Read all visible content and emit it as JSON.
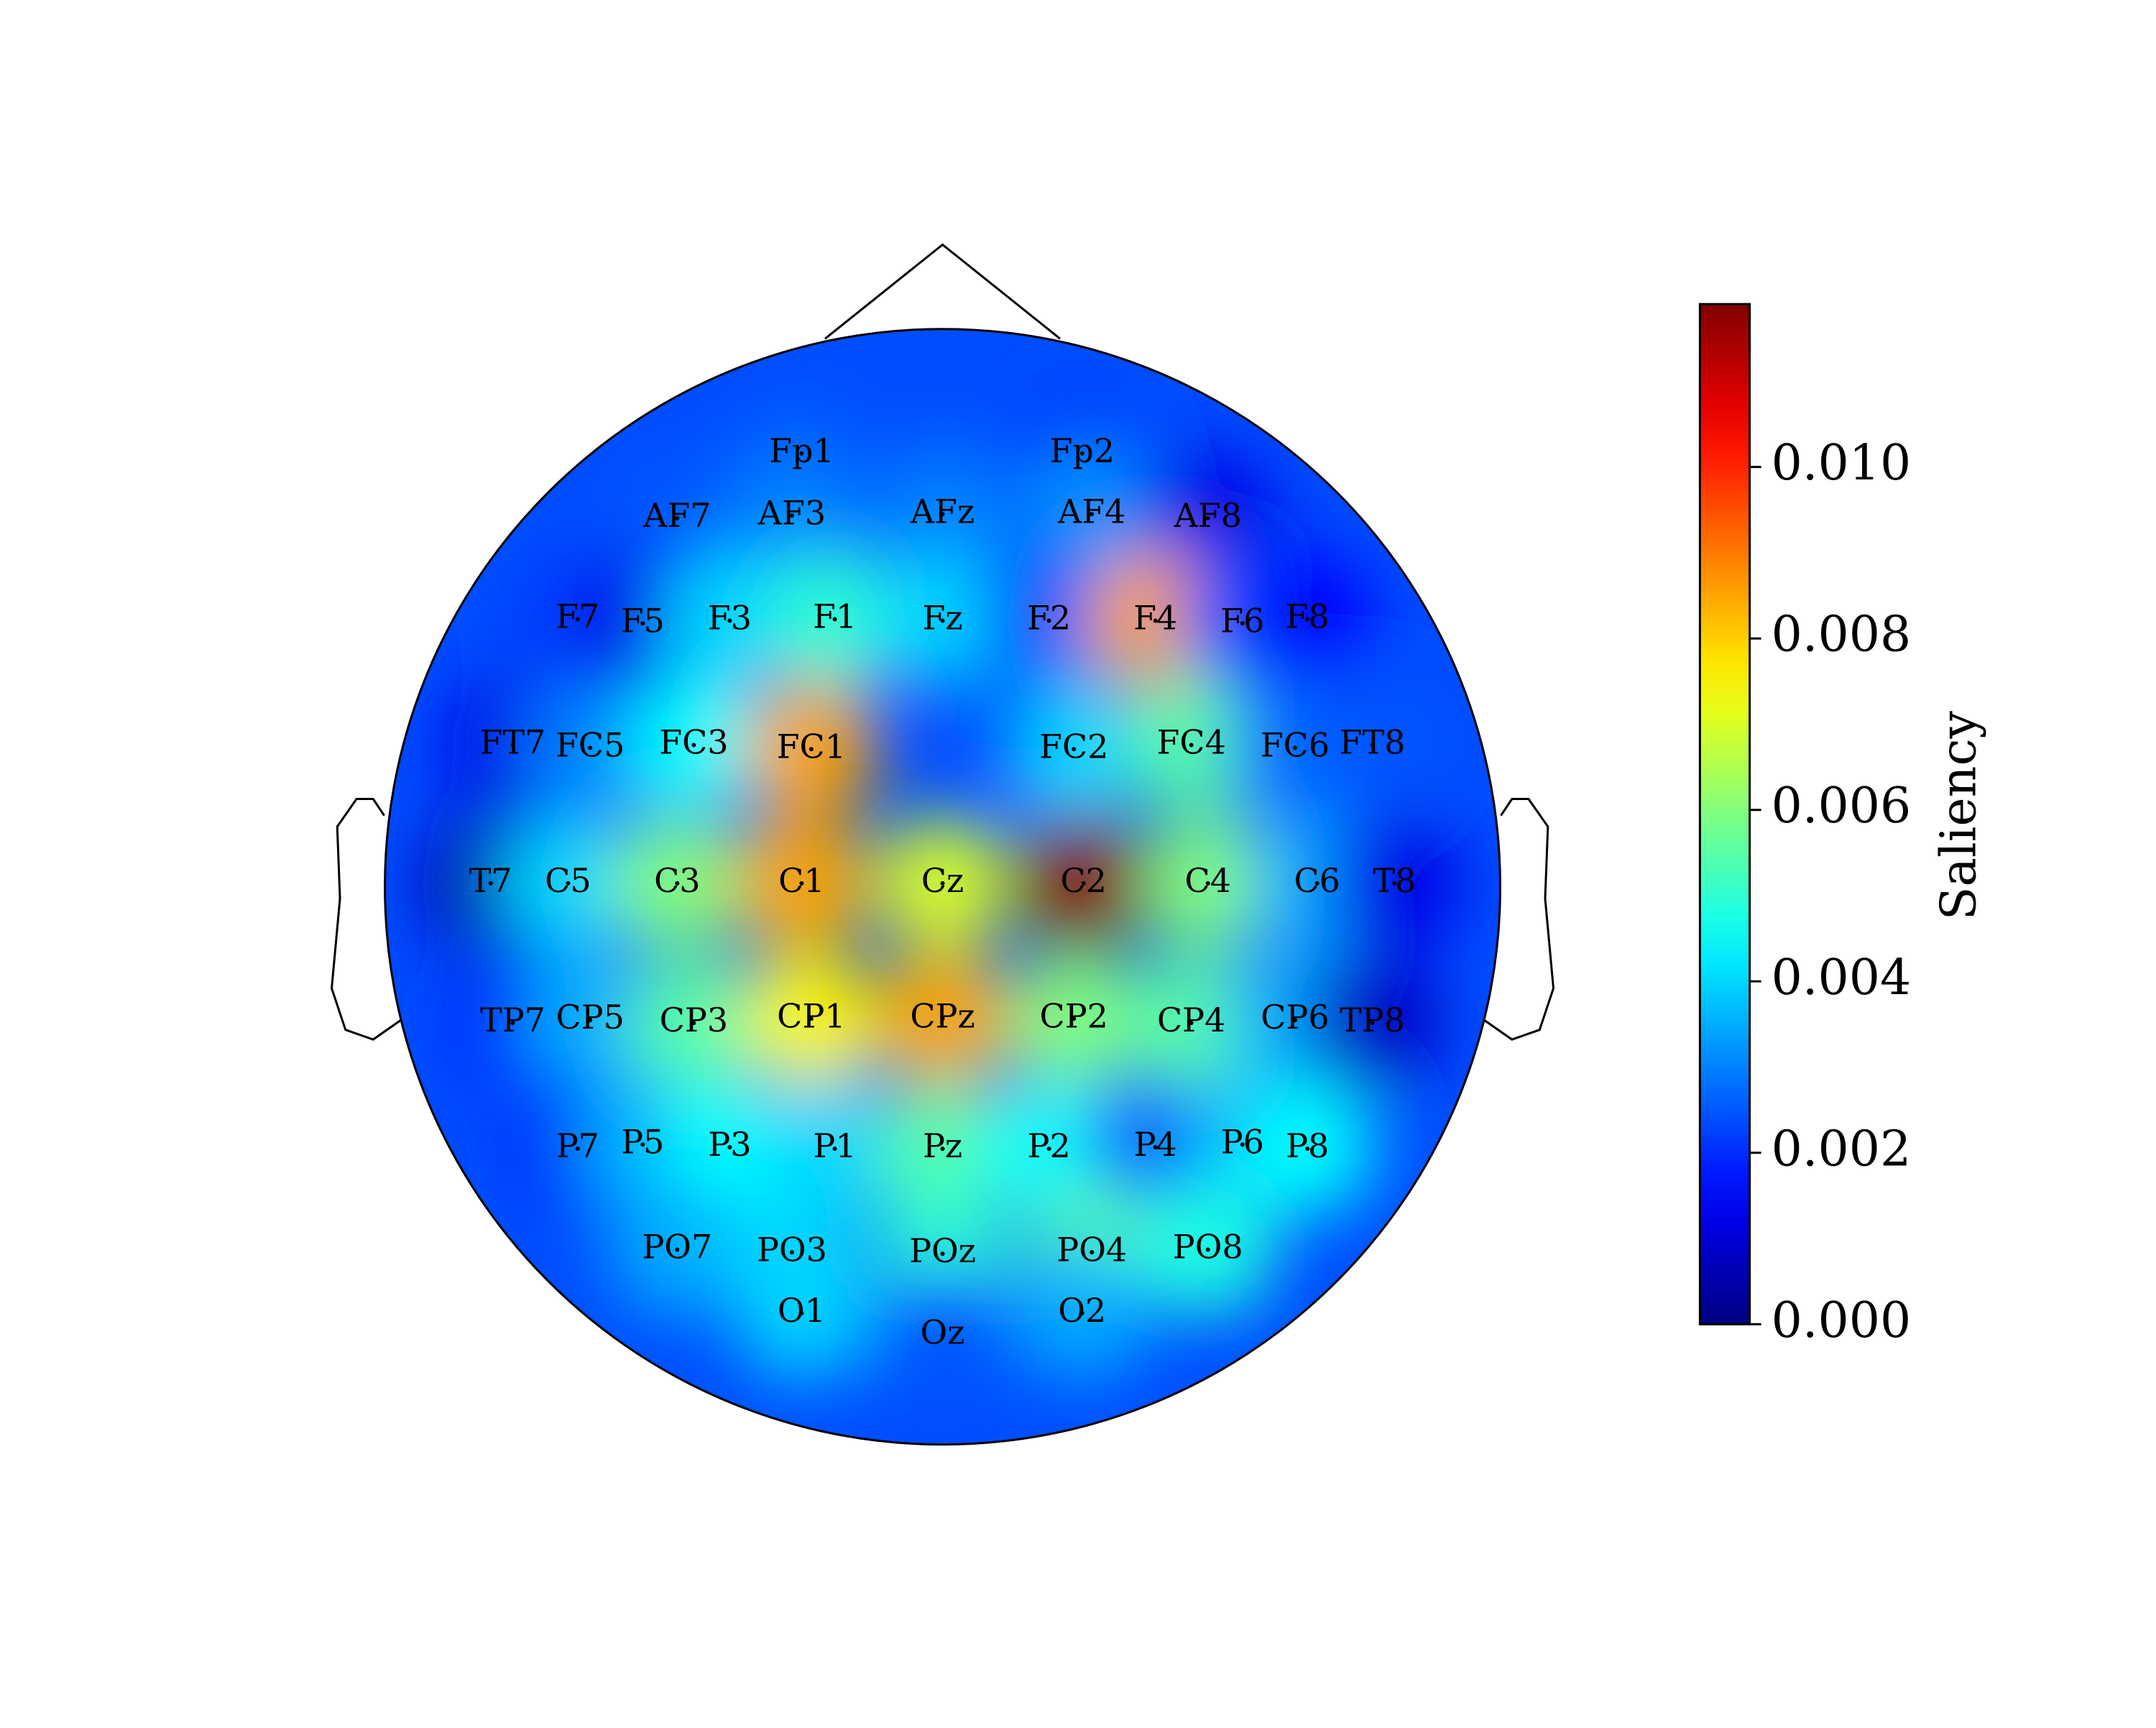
{
  "chart_data": {
    "type": "topomap",
    "colormap": "jet",
    "categories": [
      "Fp1",
      "Fp2",
      "AF7",
      "AF3",
      "AFz",
      "AF4",
      "AF8",
      "F7",
      "F5",
      "F3",
      "F1",
      "Fz",
      "F2",
      "F4",
      "F6",
      "F8",
      "FT7",
      "FC5",
      "FC3",
      "FC1",
      "FC2",
      "FC4",
      "FC6",
      "FT8",
      "T7",
      "C5",
      "C3",
      "C1",
      "Cz",
      "C2",
      "C4",
      "C6",
      "T8",
      "TP7",
      "CP5",
      "CP3",
      "CP1",
      "CPz",
      "CP2",
      "CP4",
      "CP6",
      "TP8",
      "P7",
      "P5",
      "P3",
      "P1",
      "Pz",
      "P2",
      "P4",
      "P6",
      "P8",
      "PO7",
      "PO3",
      "POz",
      "PO4",
      "PO8",
      "O1",
      "Oz",
      "O2"
    ],
    "values": [
      0.0025,
      0.0022,
      0.0025,
      0.003,
      0.003,
      0.0032,
      0.0012,
      0.0022,
      0.0012,
      0.004,
      0.005,
      0.004,
      0.0025,
      0.0085,
      0.0025,
      0.0015,
      0.0012,
      0.003,
      0.0045,
      0.0085,
      0.004,
      0.0055,
      0.0028,
      0.0025,
      0.0005,
      0.004,
      0.006,
      0.0085,
      0.007,
      0.0118,
      0.006,
      0.0035,
      0.0012,
      0.002,
      0.0035,
      0.0055,
      0.0075,
      0.0085,
      0.006,
      0.0055,
      0.0035,
      0.0008,
      0.002,
      0.0035,
      0.0045,
      0.004,
      0.0055,
      0.0045,
      0.0025,
      0.0035,
      0.0045,
      0.0035,
      0.004,
      0.005,
      0.0055,
      0.0048,
      0.004,
      0.0025,
      0.0035
    ],
    "ylim": [
      0,
      0.0119
    ],
    "yticks": [
      {
        "value": 0,
        "label": "0.000"
      },
      {
        "value": 0.002,
        "label": "0.002"
      },
      {
        "value": 0.004,
        "label": "0.004"
      },
      {
        "value": 0.006,
        "label": "0.006"
      },
      {
        "value": 0.008,
        "label": "0.008"
      },
      {
        "value": 0.01,
        "label": "0.010"
      }
    ],
    "ylabel": "Saliency"
  }
}
